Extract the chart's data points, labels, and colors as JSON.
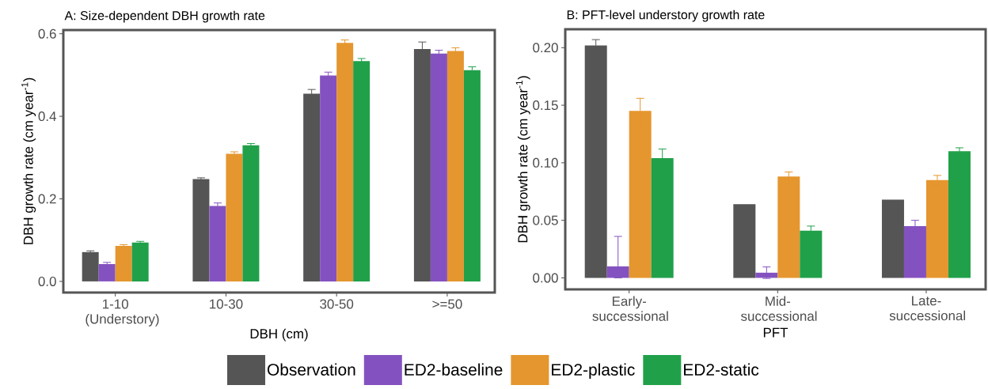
{
  "chart_data": [
    {
      "type": "bar",
      "title": "A: Size-dependent DBH growth rate",
      "xlabel": "DBH (cm)",
      "ylabel": "DBH growth rate (cm year$^{-1}$)",
      "categories": [
        "1-10 (Understory)",
        "10-30",
        "30-50",
        ">=50"
      ],
      "ylim": [
        -0.027,
        0.609
      ],
      "yticks": [
        {
          "value": 0,
          "label": "0.0"
        },
        0.2,
        0.4,
        0.6
      ],
      "legend": "bottom",
      "series": [
        {
          "name": "Observation",
          "color": "#555555",
          "values": [
            0.071,
            0.248,
            0.455,
            0.563
          ],
          "errors": [
            0.003,
            0.003,
            0.01,
            0.017
          ]
        },
        {
          "name": "ED2-baseline",
          "color": "#8452c0",
          "values": [
            0.042,
            0.183,
            0.499,
            0.552
          ],
          "errors": [
            0.004,
            0.007,
            0.008,
            0.008
          ]
        },
        {
          "name": "ED2-plastic",
          "color": "#e5962e",
          "values": [
            0.086,
            0.309,
            0.578,
            0.558
          ],
          "errors": [
            0.003,
            0.005,
            0.007,
            0.008
          ]
        },
        {
          "name": "ED2-static",
          "color": "#21a04a",
          "values": [
            0.094,
            0.33,
            0.534,
            0.512
          ],
          "errors": [
            0.003,
            0.004,
            0.006,
            0.008
          ]
        }
      ]
    },
    {
      "type": "bar",
      "title": "B: PFT-level understory growth rate",
      "xlabel": "PFT",
      "ylabel": "DBH growth rate (cm year$^{-1}$)",
      "categories": [
        "Early-successional",
        "Mid-successional",
        "Late-successional"
      ],
      "ylim": [
        -0.01,
        0.216
      ],
      "yticks": [
        {
          "value": 0,
          "label": "0.00"
        },
        {
          "value": 0.05,
          "label": "0.05"
        },
        {
          "value": 0.1,
          "label": "0.10"
        },
        {
          "value": 0.15,
          "label": "0.15"
        },
        {
          "value": 0.2,
          "label": "0.20"
        }
      ],
      "series": [
        {
          "color": "#555555",
          "values": [
            0.202,
            0.064,
            0.068
          ],
          "errors": [
            0.005,
            null,
            null
          ]
        },
        {
          "color": "#8452c0",
          "values": [
            0.01,
            0.0045,
            0.045
          ],
          "errors": [
            [
              0.0,
              0.036
            ],
            0.005,
            0.005
          ]
        },
        {
          "color": "#e5962e",
          "values": [
            0.145,
            0.088,
            0.085
          ],
          "errors": [
            0.011,
            0.004,
            0.004
          ]
        },
        {
          "color": "#21a04a",
          "values": [
            0.104,
            0.041,
            0.11
          ],
          "errors": [
            0.008,
            0.004,
            0.003
          ]
        }
      ]
    }
  ]
}
